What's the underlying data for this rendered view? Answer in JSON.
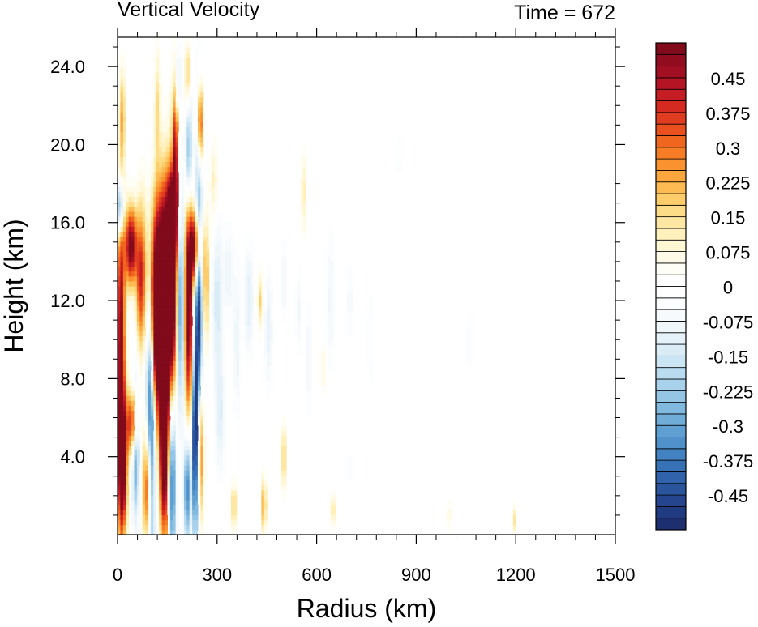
{
  "chart_data": {
    "type": "heatmap",
    "title": "Vertical Velocity",
    "subtitle": "Time = 672",
    "xlabel": "Radius (km)",
    "ylabel": "Height (km)",
    "xlim": [
      0,
      1500
    ],
    "ylim": [
      0,
      25.5
    ],
    "grid": false,
    "x_ticks": [
      0,
      300,
      600,
      900,
      1200,
      1500
    ],
    "x_tick_labels": [
      "0",
      "300",
      "600",
      "900",
      "1200",
      "1500"
    ],
    "y_ticks": [
      4,
      8,
      12,
      16,
      20,
      24
    ],
    "y_tick_labels": [
      "4.0",
      "8.0",
      "12.0",
      "16.0",
      "20.0",
      "24.0"
    ],
    "colorbar": {
      "placement": "right",
      "levels": [
        -0.525,
        -0.5,
        -0.475,
        -0.45,
        -0.425,
        -0.4,
        -0.375,
        -0.35,
        -0.325,
        -0.3,
        -0.275,
        -0.25,
        -0.225,
        -0.2,
        -0.175,
        -0.15,
        -0.125,
        -0.1,
        -0.075,
        -0.05,
        -0.025,
        0,
        0.025,
        0.05,
        0.075,
        0.1,
        0.125,
        0.15,
        0.175,
        0.2,
        0.225,
        0.25,
        0.275,
        0.3,
        0.325,
        0.35,
        0.375,
        0.4,
        0.425,
        0.45,
        0.475,
        0.5,
        0.525
      ],
      "label_values": [
        0.45,
        0.375,
        0.3,
        0.225,
        0.15,
        0.075,
        0,
        -0.075,
        -0.15,
        -0.225,
        -0.3,
        -0.375,
        -0.45
      ],
      "labels": [
        "0.45",
        "0.375",
        "0.3",
        "0.225",
        "0.15",
        "0.075",
        "0",
        "-0.075",
        "-0.15",
        "-0.225",
        "-0.3",
        "-0.375",
        "-0.45"
      ],
      "colors": [
        "#1d2f6e",
        "#213b80",
        "#25468f",
        "#2a559d",
        "#3063aa",
        "#3872b6",
        "#4282c0",
        "#5091c9",
        "#5f9fd1",
        "#70acd8",
        "#82b9df",
        "#95c5e5",
        "#a8d1eb",
        "#badcf0",
        "#cbe5f4",
        "#daedf7",
        "#e6f2f9",
        "#eff7fb",
        "#f6fafc",
        "#fbfdfe",
        "#ffffff",
        "#ffffff",
        "#fffef6",
        "#fffbe8",
        "#fff6d4",
        "#fff0bc",
        "#fee7a2",
        "#fddc87",
        "#fdcd6c",
        "#fcbb53",
        "#fba73e",
        "#f9922f",
        "#f67c25",
        "#f1661f",
        "#e9501d",
        "#e03c1f",
        "#d42a22",
        "#c61d24",
        "#b51424",
        "#a30f22",
        "#920c1f",
        "#810a1b"
      ]
    },
    "features": [
      {
        "r": 10,
        "z": 9.5,
        "dr": 9,
        "dz": 5.5,
        "w": 0.55
      },
      {
        "r": 15,
        "z": 3.5,
        "dr": 10,
        "dz": 2.4,
        "w": 0.5
      },
      {
        "r": 45,
        "z": 5.8,
        "dr": 12,
        "dz": 1.2,
        "w": 0.45
      },
      {
        "r": 8,
        "z": 16.8,
        "dr": 7,
        "dz": 1.0,
        "w": -0.45
      },
      {
        "r": 15,
        "z": 21.5,
        "dr": 6,
        "dz": 1.6,
        "w": 0.2
      },
      {
        "r": 40,
        "z": 14.8,
        "dr": 12,
        "dz": 1.4,
        "w": 0.55
      },
      {
        "r": 70,
        "z": 13.2,
        "dr": 10,
        "dz": 2.5,
        "w": 0.35
      },
      {
        "r": 55,
        "z": 4.5,
        "dr": 8,
        "dz": 2.5,
        "w": -0.35
      },
      {
        "r": 135,
        "z": 13.5,
        "dr": 30,
        "dz": 3.2,
        "w": 0.55
      },
      {
        "r": 155,
        "z": 10.5,
        "dr": 18,
        "dz": 4.5,
        "w": 0.55
      },
      {
        "r": 115,
        "z": 10.0,
        "dr": 12,
        "dz": 3.0,
        "w": 0.55
      },
      {
        "r": 165,
        "z": 16.0,
        "dr": 10,
        "dz": 1.5,
        "w": 0.55
      },
      {
        "r": 100,
        "z": 6.0,
        "dr": 10,
        "dz": 5.5,
        "w": -0.55
      },
      {
        "r": 140,
        "z": 4.5,
        "dr": 10,
        "dz": 3.5,
        "w": 0.55
      },
      {
        "r": 90,
        "z": 2.5,
        "dr": 10,
        "dz": 2.2,
        "w": 0.5
      },
      {
        "r": 165,
        "z": 3.5,
        "dr": 8,
        "dz": 3.5,
        "w": -0.5
      },
      {
        "r": 190,
        "z": 12.0,
        "dr": 8,
        "dz": 4.0,
        "w": -0.5
      },
      {
        "r": 215,
        "z": 11.5,
        "dr": 10,
        "dz": 4.0,
        "w": 0.55
      },
      {
        "r": 235,
        "z": 14.8,
        "dr": 12,
        "dz": 1.3,
        "w": 0.55
      },
      {
        "r": 245,
        "z": 10.0,
        "dr": 9,
        "dz": 6.5,
        "w": -0.55
      },
      {
        "r": 250,
        "z": 4.5,
        "dr": 7,
        "dz": 3.0,
        "w": 0.55
      },
      {
        "r": 232,
        "z": 5.0,
        "dr": 6,
        "dz": 3.5,
        "w": -0.45
      },
      {
        "r": 210,
        "z": 2.5,
        "dr": 7,
        "dz": 2.0,
        "w": -0.4
      },
      {
        "r": 265,
        "z": 13.0,
        "dr": 8,
        "dz": 2.5,
        "w": 0.25
      },
      {
        "r": 175,
        "z": 20.0,
        "dr": 7,
        "dz": 2.8,
        "w": 0.45
      },
      {
        "r": 180,
        "z": 23.0,
        "dr": 6,
        "dz": 1.5,
        "w": -0.25
      },
      {
        "r": 215,
        "z": 19.5,
        "dr": 7,
        "dz": 2.0,
        "w": -0.3
      },
      {
        "r": 250,
        "z": 21.0,
        "dr": 6,
        "dz": 1.5,
        "w": 0.45
      },
      {
        "r": 210,
        "z": 23.5,
        "dr": 5,
        "dz": 1.2,
        "w": 0.2
      },
      {
        "r": 120,
        "z": 22.0,
        "dr": 6,
        "dz": 2.0,
        "w": 0.15
      },
      {
        "r": 290,
        "z": 18.0,
        "dr": 8,
        "dz": 1.5,
        "w": 0.12
      },
      {
        "r": 300,
        "z": 12.0,
        "dr": 12,
        "dz": 3.0,
        "w": -0.14
      },
      {
        "r": 310,
        "z": 6.0,
        "dr": 10,
        "dz": 2.0,
        "w": -0.12
      },
      {
        "r": 335,
        "z": 13.5,
        "dr": 10,
        "dz": 1.5,
        "w": -0.1
      },
      {
        "r": 360,
        "z": 10.0,
        "dr": 8,
        "dz": 2.5,
        "w": -0.1
      },
      {
        "r": 395,
        "z": 12.0,
        "dr": 10,
        "dz": 2.0,
        "w": -0.12
      },
      {
        "r": 430,
        "z": 12.0,
        "dr": 6,
        "dz": 1.0,
        "w": 0.18
      },
      {
        "r": 455,
        "z": 10.5,
        "dr": 8,
        "dz": 2.0,
        "w": -0.12
      },
      {
        "r": 440,
        "z": 1.5,
        "dr": 5,
        "dz": 1.0,
        "w": 0.25
      },
      {
        "r": 350,
        "z": 1.5,
        "dr": 4,
        "dz": 0.8,
        "w": 0.25
      },
      {
        "r": 500,
        "z": 4.0,
        "dr": 5,
        "dz": 1.2,
        "w": 0.2
      },
      {
        "r": 500,
        "z": 13.0,
        "dr": 8,
        "dz": 1.5,
        "w": -0.08
      },
      {
        "r": 545,
        "z": 11.5,
        "dr": 6,
        "dz": 1.5,
        "w": -0.08
      },
      {
        "r": 575,
        "z": 9.0,
        "dr": 8,
        "dz": 2.0,
        "w": -0.08
      },
      {
        "r": 560,
        "z": 17.5,
        "dr": 5,
        "dz": 1.5,
        "w": 0.12
      },
      {
        "r": 620,
        "z": 8.5,
        "dr": 6,
        "dz": 1.0,
        "w": 0.08
      },
      {
        "r": 640,
        "z": 12.0,
        "dr": 10,
        "dz": 2.5,
        "w": -0.08
      },
      {
        "r": 700,
        "z": 12.0,
        "dr": 8,
        "dz": 1.5,
        "w": -0.06
      },
      {
        "r": 650,
        "z": 1.2,
        "dr": 5,
        "dz": 0.6,
        "w": 0.15
      },
      {
        "r": 700,
        "z": 3.5,
        "dr": 4,
        "dz": 0.8,
        "w": -0.06
      },
      {
        "r": 760,
        "z": 10.0,
        "dr": 6,
        "dz": 2.0,
        "w": -0.05
      },
      {
        "r": 850,
        "z": 19.5,
        "dr": 6,
        "dz": 1.0,
        "w": -0.05
      },
      {
        "r": 1000,
        "z": 1.0,
        "dr": 3,
        "dz": 0.6,
        "w": 0.15
      },
      {
        "r": 1195,
        "z": 0.8,
        "dr": 3,
        "dz": 0.5,
        "w": 0.15
      },
      {
        "r": 1060,
        "z": 10.0,
        "dr": 8,
        "dz": 1.5,
        "w": -0.04
      }
    ]
  }
}
